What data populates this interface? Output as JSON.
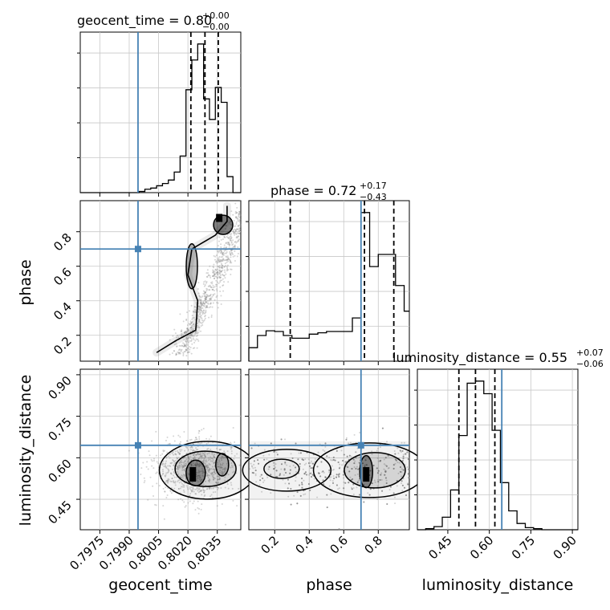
{
  "chart_data": {
    "type": "corner",
    "truth_color": "#4682b4",
    "parameters": [
      {
        "name": "geocent_time",
        "label": "geocent_time",
        "range": [
          0.7965,
          0.8047
        ],
        "ticks": [
          0.7975,
          0.799,
          0.8005,
          0.802,
          0.8035
        ],
        "tick_labels": [
          "0.7975",
          "0.7990",
          "0.8005",
          "0.8020",
          "0.8035"
        ],
        "truth": 0.79945,
        "title": {
          "prefix": "geocent_time = ",
          "median": "0.80",
          "upper": "+0.00",
          "lower": "−0.00"
        },
        "quantiles": [
          0.80215,
          0.80287,
          0.80355
        ],
        "hist_edges": [
          0.7965,
          0.7968,
          0.7971,
          0.7974,
          0.7977,
          0.798,
          0.7983,
          0.7986,
          0.7989,
          0.7992,
          0.7995,
          0.7998,
          0.8001,
          0.8004,
          0.8007,
          0.801,
          0.8013,
          0.8016,
          0.8019,
          0.8022,
          0.8025,
          0.8028,
          0.8031,
          0.8034,
          0.8037,
          0.804,
          0.8043,
          0.8047
        ],
        "hist_values": [
          0,
          0,
          0,
          0,
          0,
          0,
          0,
          0,
          0,
          0,
          1,
          3,
          4,
          6,
          8,
          11,
          18,
          32,
          90,
          116,
          130,
          82,
          64,
          92,
          79,
          14,
          0
        ]
      },
      {
        "name": "phase",
        "label": "phase",
        "range": [
          0.05,
          0.98
        ],
        "ticks": [
          0.2,
          0.4,
          0.6,
          0.8
        ],
        "tick_labels": [
          "0.2",
          "0.4",
          "0.6",
          "0.8"
        ],
        "truth": 0.7,
        "title": {
          "prefix": "phase = ",
          "median": "0.72",
          "upper": "+0.17",
          "lower": "−0.43"
        },
        "quantiles": [
          0.29,
          0.72,
          0.89
        ],
        "hist_edges": [
          0.05,
          0.1,
          0.15,
          0.2,
          0.25,
          0.3,
          0.35,
          0.4,
          0.45,
          0.5,
          0.55,
          0.6,
          0.65,
          0.7,
          0.75,
          0.8,
          0.85,
          0.9,
          0.95,
          0.98
        ],
        "hist_values": [
          20,
          38,
          45,
          44,
          38,
          34,
          34,
          40,
          42,
          44,
          44,
          44,
          64,
          220,
          140,
          158,
          158,
          112,
          74
        ]
      },
      {
        "name": "luminosity_distance",
        "label": "luminosity_distance",
        "range": [
          0.34,
          0.92
        ],
        "ticks": [
          0.45,
          0.6,
          0.75,
          0.9
        ],
        "tick_labels": [
          "0.45",
          "0.60",
          "0.75",
          "0.90"
        ],
        "truth": 0.645,
        "title": {
          "prefix": "luminosity_distance = ",
          "median": "0.55",
          "upper": "+0.07",
          "lower": "−0.06"
        },
        "quantiles": [
          0.49,
          0.55,
          0.62
        ],
        "hist_edges": [
          0.34,
          0.37,
          0.4,
          0.43,
          0.46,
          0.49,
          0.52,
          0.55,
          0.58,
          0.61,
          0.64,
          0.67,
          0.7,
          0.73,
          0.76,
          0.79,
          0.82,
          0.85,
          0.88,
          0.92
        ],
        "hist_values": [
          0,
          1,
          3,
          12,
          38,
          90,
          140,
          142,
          130,
          95,
          45,
          18,
          6,
          2,
          1,
          0,
          0,
          0,
          0
        ]
      }
    ],
    "grid": true
  }
}
